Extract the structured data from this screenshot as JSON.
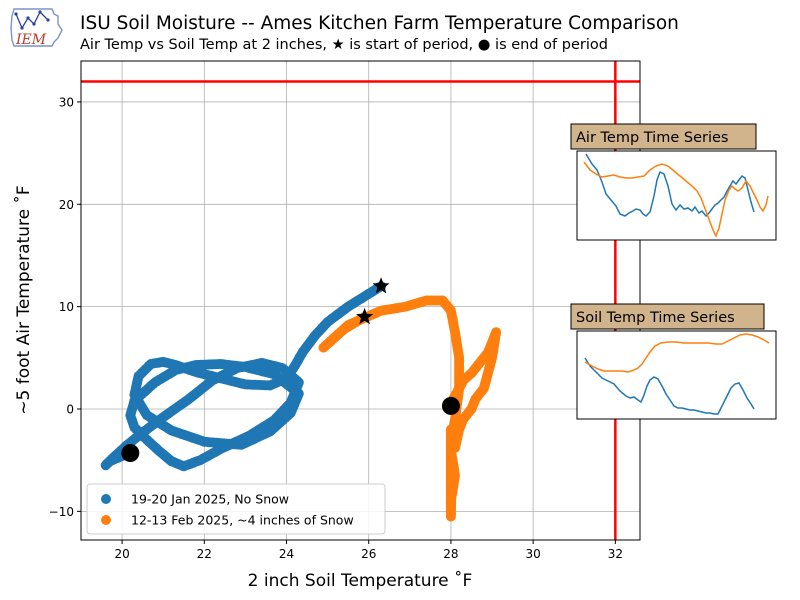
{
  "header": {
    "title": "ISU Soil Moisture -- Ames Kitchen Farm Temperature Comparison",
    "subtitle": "Air Temp vs Soil Temp at 2 inches, ★ is start of period, ● is end of period",
    "logo_text": "IEM"
  },
  "chart_data": {
    "type": "scatter",
    "xlabel": "2 inch Soil Temperature ˚F",
    "ylabel": "~5 foot Air Temperature ˚F",
    "xlim": [
      19,
      32.6
    ],
    "ylim": [
      -12.8,
      34
    ],
    "xticks": [
      20,
      22,
      24,
      26,
      28,
      30,
      32
    ],
    "yticks": [
      -10,
      0,
      10,
      20,
      30
    ],
    "grid": true,
    "legend_position": "lower-left",
    "reference_lines": {
      "x": 32,
      "y": 32,
      "color": "#ff0000"
    },
    "series": [
      {
        "name": "19-20 Jan 2025, No Snow",
        "color": "#1f77b4",
        "start": [
          26.3,
          12.0
        ],
        "end": [
          20.2,
          -4.3
        ],
        "x": [
          26.3,
          25.9,
          25.5,
          25.0,
          24.7,
          24.4,
          24.2,
          24.0,
          23.6,
          23.0,
          22.4,
          21.8,
          21.3,
          21.0,
          20.7,
          20.4,
          20.3,
          20.6,
          21.2,
          22.0,
          22.9,
          23.6,
          24.1,
          24.3,
          23.7,
          23.0,
          22.4,
          21.8,
          21.3,
          20.8,
          20.3,
          20.2,
          20.3,
          20.6,
          20.9,
          21.2,
          21.5,
          21.9,
          22.4,
          23.1,
          23.7,
          24.1,
          24.3,
          23.9,
          23.4,
          22.8,
          22.2,
          21.6,
          21.0,
          20.5,
          20.1,
          19.8,
          19.6,
          19.7,
          20.0,
          20.2
        ],
        "y": [
          12.0,
          11.0,
          10.0,
          8.5,
          7.2,
          5.6,
          4.2,
          3.0,
          2.3,
          2.4,
          3.0,
          3.6,
          4.3,
          4.6,
          4.4,
          3.2,
          1.4,
          -0.6,
          -2.1,
          -3.2,
          -3.5,
          -2.2,
          -0.4,
          1.5,
          3.4,
          4.1,
          4.4,
          4.3,
          3.8,
          2.6,
          0.8,
          -0.6,
          -1.8,
          -3.0,
          -4.1,
          -5.1,
          -5.6,
          -5.0,
          -3.9,
          -2.6,
          -1.1,
          0.6,
          2.6,
          4.0,
          4.5,
          4.0,
          2.8,
          0.9,
          -0.8,
          -2.3,
          -3.6,
          -4.7,
          -5.5,
          -5.1,
          -4.6,
          -4.3
        ]
      },
      {
        "name": "12-13 Feb 2025, ~4 inches of Snow",
        "color": "#ff7f0e",
        "start": [
          25.9,
          9.0
        ],
        "end": [
          28.0,
          0.3
        ],
        "x": [
          25.9,
          25.4,
          24.9,
          25.5,
          26.3,
          26.9,
          27.4,
          27.8,
          28.0,
          28.1,
          28.2,
          28.2,
          28.1,
          28.0,
          28.0,
          28.0,
          28.0,
          28.0,
          28.0,
          28.1,
          28.0,
          28.0,
          28.0,
          28.0,
          28.0,
          28.0,
          28.0,
          28.1,
          28.1,
          28.2,
          28.3,
          28.4,
          28.5,
          28.6,
          28.8,
          28.9,
          29.0,
          29.1,
          29.0,
          28.9,
          28.8,
          28.7,
          28.6,
          28.5,
          28.3,
          28.2,
          28.1,
          28.0,
          28.0
        ],
        "y": [
          9.0,
          7.8,
          6.0,
          8.2,
          9.6,
          10.0,
          10.6,
          10.6,
          9.6,
          7.5,
          5.0,
          2.0,
          -1.0,
          -3.5,
          -6.0,
          -8.0,
          -10.0,
          -10.5,
          -9.0,
          -6.5,
          -4.0,
          -2.0,
          -6.0,
          -8.5,
          -9.5,
          -7.0,
          -3.5,
          -2.5,
          -3.8,
          -2.0,
          -1.0,
          -0.5,
          0.0,
          1.0,
          2.0,
          3.5,
          5.0,
          7.5,
          6.5,
          5.5,
          5.0,
          4.5,
          4.0,
          3.5,
          2.8,
          2.0,
          1.3,
          0.6,
          0.3
        ]
      }
    ]
  },
  "insets": {
    "air": {
      "title": "Air Temp Time Series"
    },
    "soil": {
      "title": "Soil Temp Time Series"
    }
  }
}
